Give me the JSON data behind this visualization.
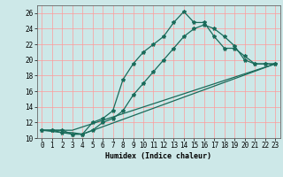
{
  "xlabel": "Humidex (Indice chaleur)",
  "bg_color": "#cde8e8",
  "grid_color": "#ff9999",
  "line_color": "#1a6b5a",
  "xlim": [
    -0.5,
    23.5
  ],
  "ylim": [
    10,
    27
  ],
  "xticks": [
    0,
    1,
    2,
    3,
    4,
    5,
    6,
    7,
    8,
    9,
    10,
    11,
    12,
    13,
    14,
    15,
    16,
    17,
    18,
    19,
    20,
    21,
    22,
    23
  ],
  "yticks": [
    10,
    12,
    14,
    16,
    18,
    20,
    22,
    24,
    26
  ],
  "line1_x": [
    0,
    1,
    2,
    3,
    4,
    5,
    6,
    7,
    8,
    9,
    10,
    11,
    12,
    13,
    14,
    15,
    16,
    17,
    18,
    19,
    20,
    21,
    22,
    23
  ],
  "line1_y": [
    11,
    11,
    11,
    10.5,
    10.5,
    12,
    12.5,
    13.5,
    17.5,
    19.5,
    21,
    22,
    23,
    24.8,
    26.2,
    24.8,
    24.8,
    23,
    21.5,
    21.5,
    20.5,
    19.5,
    19.5,
    19.5
  ],
  "line2_x": [
    0,
    1,
    2,
    3,
    4,
    5,
    6,
    7,
    8,
    9,
    10,
    11,
    12,
    13,
    14,
    15,
    16,
    17,
    18,
    19,
    20,
    21,
    22,
    23
  ],
  "line2_y": [
    11,
    11,
    10.7,
    10.5,
    10.5,
    11,
    12,
    12.5,
    13.5,
    15.5,
    17,
    18.5,
    20,
    21.5,
    23,
    24,
    24.5,
    24,
    23,
    21.8,
    20,
    19.5,
    19.5,
    19.5
  ],
  "line3_x": [
    0,
    2,
    3,
    23
  ],
  "line3_y": [
    11,
    11,
    11,
    19.5
  ],
  "line4_x": [
    0,
    2,
    3,
    4,
    23
  ],
  "line4_y": [
    11,
    10.7,
    10.7,
    10.5,
    19.5
  ],
  "marker": "*",
  "markersize": 3,
  "linewidth": 0.9,
  "tick_labelsize": 5.5,
  "xlabel_fontsize": 6
}
